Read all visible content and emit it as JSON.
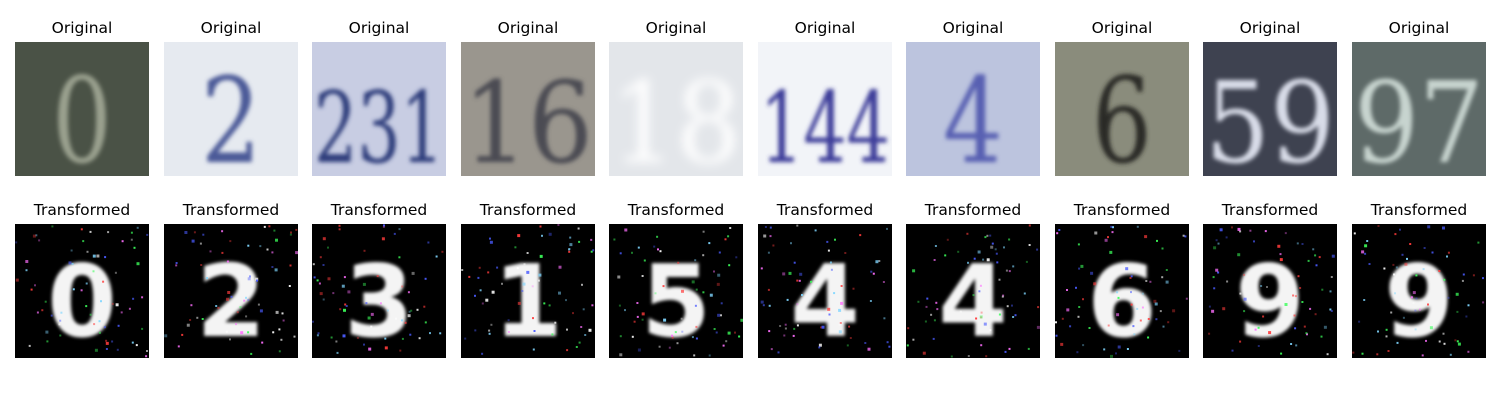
{
  "figure": {
    "top_row_title": "Original",
    "bottom_row_title": "Transformed"
  },
  "samples": [
    {
      "original": {
        "digits": "0",
        "bg": "#4a5246",
        "fg": "#9aa08e"
      },
      "transformed": {
        "digits": "0"
      }
    },
    {
      "original": {
        "digits": "2",
        "bg": "#e6eaf0",
        "fg": "#4b5a98"
      },
      "transformed": {
        "digits": "2"
      }
    },
    {
      "original": {
        "digits": "231",
        "bg": "#c8cde3",
        "fg": "#2e3d7c"
      },
      "transformed": {
        "digits": "3"
      }
    },
    {
      "original": {
        "digits": "16",
        "bg": "#9a968e",
        "fg": "#4b4c52"
      },
      "transformed": {
        "digits": "1"
      }
    },
    {
      "original": {
        "digits": "18",
        "bg": "#e3e6ea",
        "fg": "#ffffff"
      },
      "transformed": {
        "digits": "5"
      }
    },
    {
      "original": {
        "digits": "144",
        "bg": "#f2f4f8",
        "fg": "#3c3d9a"
      },
      "transformed": {
        "digits": "4"
      }
    },
    {
      "original": {
        "digits": "4",
        "bg": "#bcc4de",
        "fg": "#5860b2"
      },
      "transformed": {
        "digits": "4"
      }
    },
    {
      "original": {
        "digits": "6",
        "bg": "#8a8c7c",
        "fg": "#2b2a26"
      },
      "transformed": {
        "digits": "6"
      }
    },
    {
      "original": {
        "digits": "59",
        "bg": "#3e4250",
        "fg": "#d8dce8"
      },
      "transformed": {
        "digits": "9"
      }
    },
    {
      "original": {
        "digits": "97",
        "bg": "#5e6a68",
        "fg": "#c7d4cf"
      },
      "transformed": {
        "digits": "9"
      }
    }
  ]
}
